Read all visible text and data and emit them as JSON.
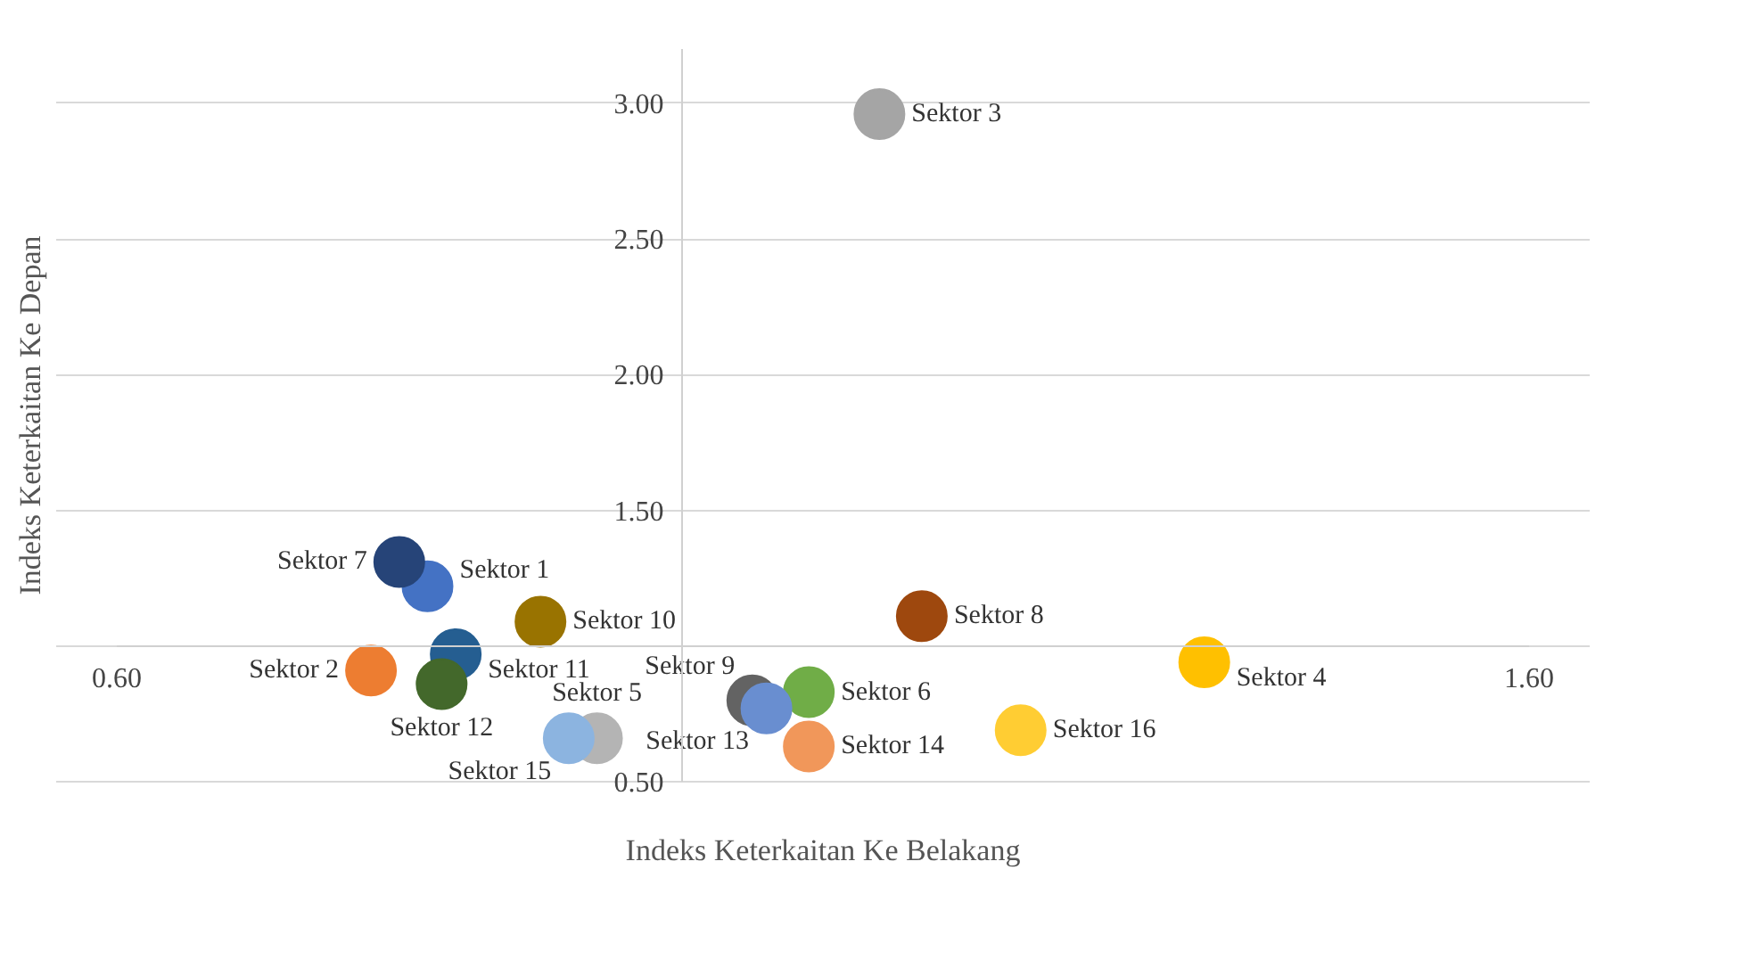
{
  "chart_data": {
    "type": "scatter",
    "xlabel": "Indeks Keterkaitan Ke Belakang",
    "ylabel": "Indeks Keterkaitan Ke Depan",
    "xlim": [
      0.6,
      1.6
    ],
    "ylim": [
      0.5,
      3.2
    ],
    "xticks": [
      {
        "value": 0.6,
        "label": "0.60"
      },
      {
        "value": 1.0,
        "label": null
      },
      {
        "value": 1.6,
        "label": "1.60"
      }
    ],
    "yticks": [
      {
        "value": 0.5,
        "label": "0.50"
      },
      {
        "value": 1.0,
        "label": null
      },
      {
        "value": 1.5,
        "label": "1.50"
      },
      {
        "value": 2.0,
        "label": "2.00"
      },
      {
        "value": 2.5,
        "label": "2.50"
      },
      {
        "value": 3.0,
        "label": "3.00"
      }
    ],
    "grid": "y",
    "legend": false,
    "marker": "circle",
    "series": [
      {
        "name": "Sektor 1",
        "color": "#4472c4",
        "x": [
          0.82
        ],
        "values": [
          1.22
        ]
      },
      {
        "name": "Sektor 2",
        "color": "#ed7d31",
        "x": [
          0.78
        ],
        "values": [
          0.91
        ]
      },
      {
        "name": "Sektor 3",
        "color": "#a5a5a5",
        "x": [
          1.14
        ],
        "values": [
          2.96
        ]
      },
      {
        "name": "Sektor 4",
        "color": "#ffc000",
        "x": [
          1.37
        ],
        "values": [
          0.94
        ]
      },
      {
        "name": "Sektor 5",
        "color": "#b4b4b4",
        "x": [
          0.94
        ],
        "values": [
          0.66
        ]
      },
      {
        "name": "Sektor 6",
        "color": "#70ad47",
        "x": [
          1.09
        ],
        "values": [
          0.83
        ]
      },
      {
        "name": "Sektor 7",
        "color": "#264478",
        "x": [
          0.8
        ],
        "values": [
          1.31
        ]
      },
      {
        "name": "Sektor 8",
        "color": "#9e480e",
        "x": [
          1.17
        ],
        "values": [
          1.11
        ]
      },
      {
        "name": "Sektor 9",
        "color": "#636363",
        "x": [
          1.05
        ],
        "values": [
          0.8
        ]
      },
      {
        "name": "Sektor 10",
        "color": "#997300",
        "x": [
          0.9
        ],
        "values": [
          1.09
        ]
      },
      {
        "name": "Sektor 11",
        "color": "#255e91",
        "x": [
          0.84
        ],
        "values": [
          0.97
        ]
      },
      {
        "name": "Sektor 12",
        "color": "#43682b",
        "x": [
          0.83
        ],
        "values": [
          0.86
        ]
      },
      {
        "name": "Sektor 13",
        "color": "#698ed0",
        "x": [
          1.06
        ],
        "values": [
          0.77
        ]
      },
      {
        "name": "Sektor 14",
        "color": "#f1975a",
        "x": [
          1.09
        ],
        "values": [
          0.63
        ]
      },
      {
        "name": "Sektor 15",
        "color": "#8cb4e0",
        "x": [
          0.92
        ],
        "values": [
          0.66
        ]
      },
      {
        "name": "Sektor 16",
        "color": "#ffcd33",
        "x": [
          1.24
        ],
        "values": [
          0.69
        ]
      }
    ]
  }
}
